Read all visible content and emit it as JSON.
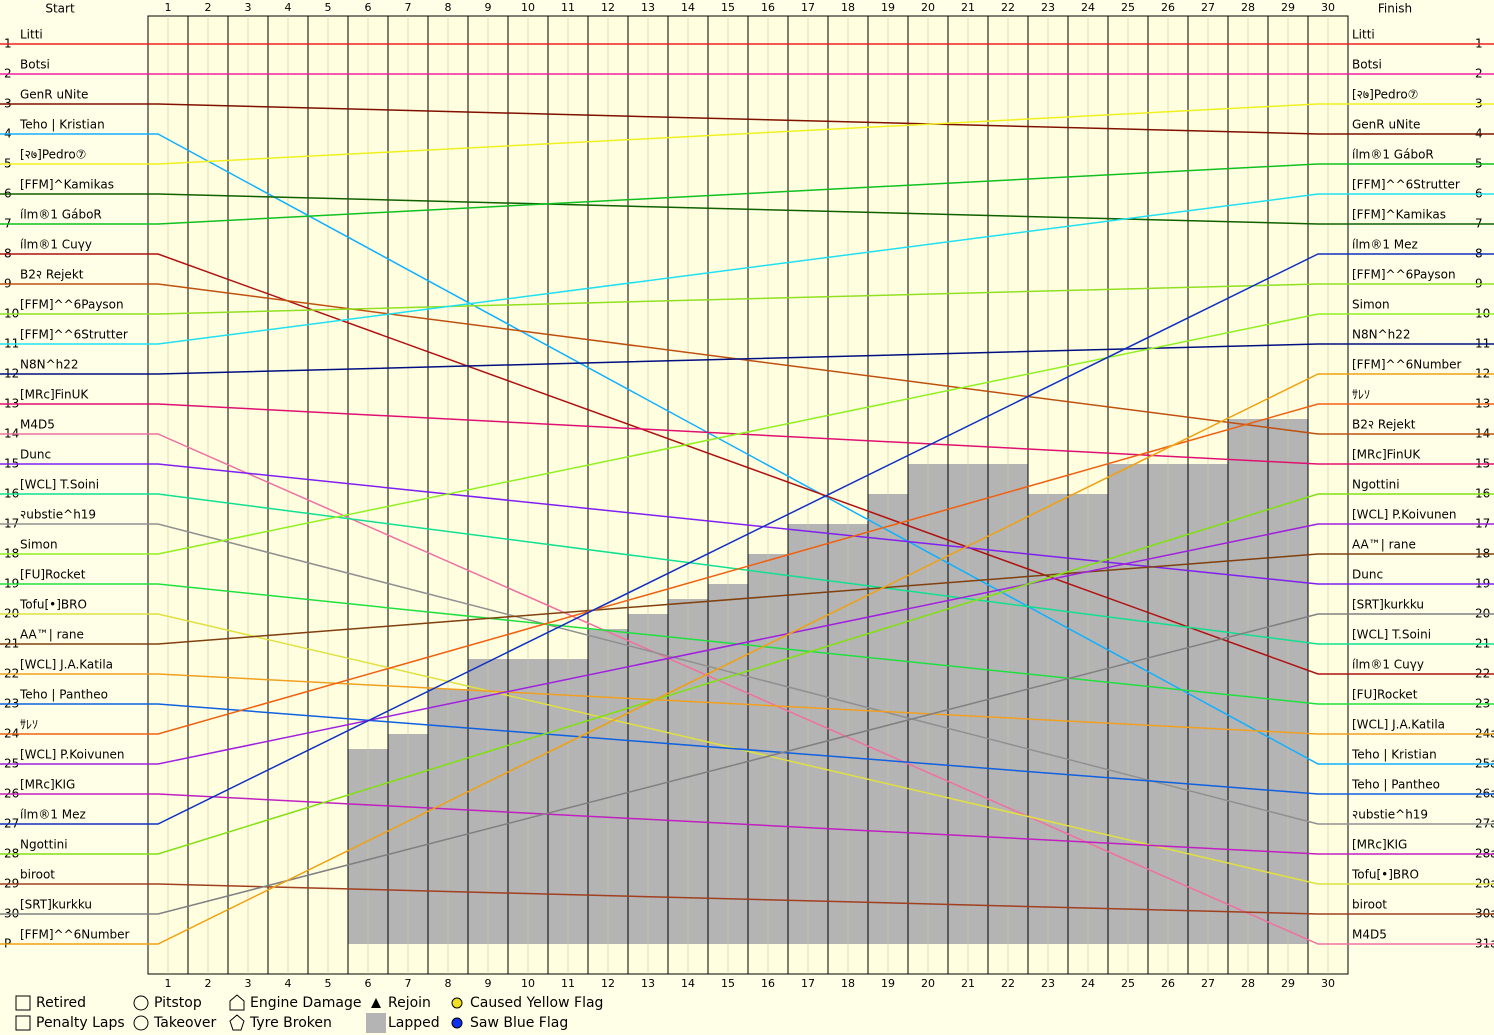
{
  "chart_data": {
    "type": "lapchart",
    "start_header": "Start",
    "finish_header": "Finish",
    "laps": [
      1,
      2,
      3,
      4,
      5,
      6,
      7,
      8,
      9,
      10,
      11,
      12,
      13,
      14,
      15,
      16,
      17,
      18,
      19,
      20,
      21,
      22,
      23,
      24,
      25,
      26,
      27,
      28,
      29,
      30
    ],
    "start_labels": [
      "1",
      "2",
      "3",
      "4",
      "5",
      "6",
      "7",
      "8",
      "9",
      "10",
      "11",
      "12",
      "13",
      "14",
      "15",
      "16",
      "17",
      "18",
      "19",
      "20",
      "21",
      "22",
      "23",
      "24",
      "25",
      "26",
      "27",
      "28",
      "29",
      "30",
      "P"
    ],
    "finish_labels": [
      "1",
      "2",
      "3",
      "4",
      "5",
      "6",
      "7",
      "8",
      "9",
      "10",
      "11",
      "12",
      "13",
      "14",
      "15",
      "16",
      "17",
      "18",
      "19",
      "20",
      "21",
      "22",
      "23",
      "24a",
      "25a",
      "26a",
      "27a",
      "28a",
      "29a",
      "30a",
      "31a"
    ],
    "drivers": [
      {
        "name": "Litti",
        "color": "#f02020",
        "start": 1,
        "finish": 1
      },
      {
        "name": "Botsi",
        "color": "#f020a0",
        "start": 2,
        "finish": 2
      },
      {
        "name": "GenR uNite",
        "color": "#801000",
        "start": 3,
        "finish": 4
      },
      {
        "name": "Teho | Kristian",
        "color": "#10b0ff",
        "start": 4,
        "finish": 25
      },
      {
        "name": "[२७]Pedro⑦",
        "color": "#f0f020",
        "start": 5,
        "finish": 3
      },
      {
        "name": "[FFM]^Kamikas",
        "color": "#106000",
        "start": 6,
        "finish": 7
      },
      {
        "name": "ílm®1 GáboR",
        "color": "#10c020",
        "start": 7,
        "finish": 5
      },
      {
        "name": "ílm®1 Cuγy",
        "color": "#b01010",
        "start": 8,
        "finish": 22
      },
      {
        "name": "B2२ Rejekt",
        "color": "#c05010",
        "start": 9,
        "finish": 14
      },
      {
        "name": "[FFM]^^6Payson",
        "color": "#90e020",
        "start": 10,
        "finish": 9
      },
      {
        "name": "[FFM]^^6Strutter",
        "color": "#20e0f0",
        "start": 11,
        "finish": 6
      },
      {
        "name": "N8N^h22",
        "color": "#001080",
        "start": 12,
        "finish": 11
      },
      {
        "name": "[MRc]FinUK",
        "color": "#e01070",
        "start": 13,
        "finish": 15
      },
      {
        "name": "M4D5",
        "color": "#f070a0",
        "start": 14,
        "finish": 31
      },
      {
        "name": "Dunc",
        "color": "#8020f0",
        "start": 15,
        "finish": 19
      },
      {
        "name": "[WCL] T.Soini",
        "color": "#10e090",
        "start": 16,
        "finish": 21
      },
      {
        "name": "२ubstie^h19",
        "color": "#909090",
        "start": 17,
        "finish": 27
      },
      {
        "name": "Simon",
        "color": "#90f020",
        "start": 18,
        "finish": 10
      },
      {
        "name": "[FU]Rocket",
        "color": "#20e040",
        "start": 19,
        "finish": 23
      },
      {
        "name": "Tofu[•]BRO",
        "color": "#e0e040",
        "start": 20,
        "finish": 29
      },
      {
        "name": "AA™| rane",
        "color": "#804010",
        "start": 21,
        "finish": 18
      },
      {
        "name": "[WCL] J.A.Katila",
        "color": "#f0a020",
        "start": 22,
        "finish": 24
      },
      {
        "name": "Teho | Pantheo",
        "color": "#1060e0",
        "start": 23,
        "finish": 26
      },
      {
        "name": "ｻﾚｿ",
        "color": "#f06010",
        "start": 24,
        "finish": 13
      },
      {
        "name": "[WCL] P.Koivunen",
        "color": "#a020e0",
        "start": 25,
        "finish": 17
      },
      {
        "name": "[MRc]KIG",
        "color": "#c020c0",
        "start": 26,
        "finish": 28
      },
      {
        "name": "ílm®1 Mez",
        "color": "#1030c0",
        "start": 27,
        "finish": 8
      },
      {
        "name": "Ngottini",
        "color": "#80e010",
        "start": 28,
        "finish": 16
      },
      {
        "name": "biroot",
        "color": "#a04020",
        "start": 29,
        "finish": 30
      },
      {
        "name": "[SRT]kurkku",
        "color": "#808080",
        "start": 30,
        "finish": 20
      },
      {
        "name": "[FFM]^^6Number",
        "color": "#f0a010",
        "start": 31,
        "finish": 12
      }
    ],
    "lapped": {
      "laps": [
        6,
        7,
        8,
        9,
        10,
        11,
        12,
        13,
        14,
        15,
        16,
        17,
        18,
        19,
        20,
        21,
        22,
        23,
        24,
        25,
        26,
        27,
        28,
        29
      ],
      "top_position": [
        24.5,
        24,
        22.5,
        21.5,
        21.5,
        21.5,
        20.5,
        20,
        19.5,
        19,
        18,
        17,
        17,
        16,
        15,
        15,
        15,
        16,
        16,
        15,
        15,
        15,
        13.5,
        13.5
      ]
    },
    "legend": [
      "Retired",
      "Penalty Laps",
      "Pitstop",
      "Takeover",
      "Engine Damage",
      "Tyre Broken",
      "Rejoin",
      "Lapped",
      "Caused Yellow Flag",
      "Saw Blue Flag"
    ]
  }
}
